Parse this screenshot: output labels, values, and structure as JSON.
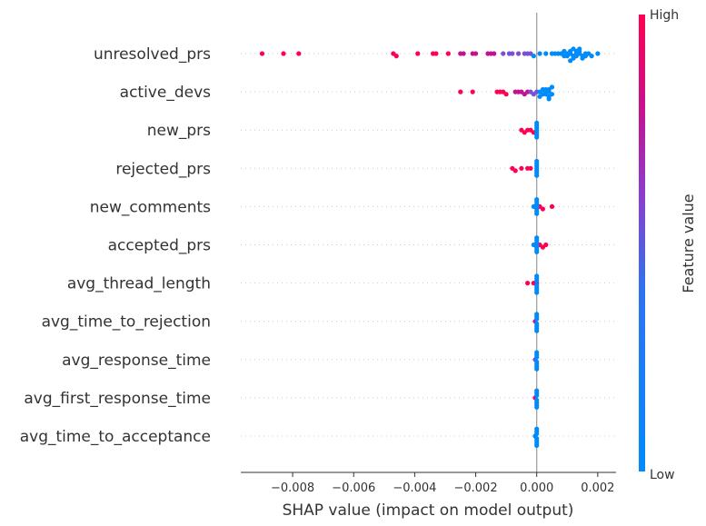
{
  "chart_data": {
    "type": "scatter",
    "subtype": "shap-beeswarm",
    "xlabel": "SHAP value (impact on model output)",
    "xlim": [
      -0.0097,
      0.0026
    ],
    "xticks": [
      -0.008,
      -0.006,
      -0.004,
      -0.002,
      0.0,
      0.002
    ],
    "xtick_labels": [
      "−0.008",
      "−0.006",
      "−0.004",
      "−0.002",
      "0.000",
      "0.002"
    ],
    "zero_line": 0.0,
    "colorbar": {
      "label": "Feature value",
      "high_label": "High",
      "low_label": "Low",
      "colors": [
        "#008bfb",
        "#7b4fd6",
        "#c2128f",
        "#ff0052"
      ]
    },
    "point_colors": {
      "low": "#008bfb",
      "purple": "#7b4fd6",
      "magenta": "#c2128f",
      "high": "#ff0052"
    },
    "features": [
      {
        "name": "unresolved_prs",
        "points": [
          {
            "x": -0.009,
            "c": "high"
          },
          {
            "x": -0.0083,
            "c": "high"
          },
          {
            "x": -0.0078,
            "c": "high"
          },
          {
            "x": -0.0047,
            "c": "high"
          },
          {
            "x": -0.0046,
            "c": "high"
          },
          {
            "x": -0.0039,
            "c": "high"
          },
          {
            "x": -0.0034,
            "c": "high"
          },
          {
            "x": -0.0033,
            "c": "high"
          },
          {
            "x": -0.0029,
            "c": "high"
          },
          {
            "x": -0.0025,
            "c": "magenta"
          },
          {
            "x": -0.0024,
            "c": "magenta"
          },
          {
            "x": -0.0021,
            "c": "magenta"
          },
          {
            "x": -0.002,
            "c": "magenta"
          },
          {
            "x": -0.0016,
            "c": "magenta"
          },
          {
            "x": -0.0015,
            "c": "magenta"
          },
          {
            "x": -0.0014,
            "c": "magenta"
          },
          {
            "x": -0.0011,
            "c": "purple"
          },
          {
            "x": -0.0009,
            "c": "purple"
          },
          {
            "x": -0.0008,
            "c": "purple"
          },
          {
            "x": -0.0006,
            "c": "purple"
          },
          {
            "x": -0.0004,
            "c": "purple"
          },
          {
            "x": -0.0003,
            "c": "purple"
          },
          {
            "x": -0.0002,
            "c": "purple"
          },
          {
            "x": -0.0001,
            "c": "low"
          },
          {
            "x": 0.0001,
            "c": "low"
          },
          {
            "x": 0.0003,
            "c": "low"
          },
          {
            "x": 0.0005,
            "c": "low"
          },
          {
            "x": 0.0006,
            "c": "low"
          },
          {
            "x": 0.0007,
            "c": "low"
          },
          {
            "x": 0.0008,
            "c": "low"
          },
          {
            "x": 0.0009,
            "c": "low"
          },
          {
            "x": 0.001,
            "c": "low"
          },
          {
            "x": 0.0011,
            "c": "low"
          },
          {
            "x": 0.0012,
            "c": "low"
          },
          {
            "x": 0.0013,
            "c": "low"
          },
          {
            "x": 0.0014,
            "c": "low"
          },
          {
            "x": 0.0015,
            "c": "low"
          },
          {
            "x": 0.0016,
            "c": "low"
          },
          {
            "x": 0.0017,
            "c": "low"
          },
          {
            "x": 0.0018,
            "c": "low"
          },
          {
            "x": 0.002,
            "c": "low"
          },
          {
            "x": 0.0009,
            "c": "low"
          },
          {
            "x": 0.0011,
            "c": "low"
          },
          {
            "x": 0.0012,
            "c": "low"
          },
          {
            "x": 0.0013,
            "c": "low"
          },
          {
            "x": 0.0014,
            "c": "low"
          },
          {
            "x": 0.0015,
            "c": "low"
          },
          {
            "x": 0.001,
            "c": "low"
          },
          {
            "x": 0.0012,
            "c": "low"
          },
          {
            "x": 0.0013,
            "c": "low"
          },
          {
            "x": 0.0014,
            "c": "low"
          },
          {
            "x": 0.0011,
            "c": "low"
          },
          {
            "x": 0.0016,
            "c": "low"
          }
        ]
      },
      {
        "name": "active_devs",
        "points": [
          {
            "x": -0.0025,
            "c": "high"
          },
          {
            "x": -0.0021,
            "c": "high"
          },
          {
            "x": -0.0013,
            "c": "high"
          },
          {
            "x": -0.0012,
            "c": "high"
          },
          {
            "x": -0.0011,
            "c": "high"
          },
          {
            "x": -0.001,
            "c": "high"
          },
          {
            "x": -0.0007,
            "c": "magenta"
          },
          {
            "x": -0.0006,
            "c": "magenta"
          },
          {
            "x": -0.0005,
            "c": "magenta"
          },
          {
            "x": -0.0004,
            "c": "magenta"
          },
          {
            "x": -0.0003,
            "c": "magenta"
          },
          {
            "x": -0.0002,
            "c": "purple"
          },
          {
            "x": -0.0001,
            "c": "purple"
          },
          {
            "x": 0.0,
            "c": "purple"
          },
          {
            "x": 0.0001,
            "c": "low"
          },
          {
            "x": 0.0002,
            "c": "low"
          },
          {
            "x": 0.0003,
            "c": "low"
          },
          {
            "x": 0.0004,
            "c": "low"
          },
          {
            "x": 0.0005,
            "c": "low"
          },
          {
            "x": 0.0003,
            "c": "low"
          },
          {
            "x": 0.0004,
            "c": "low"
          },
          {
            "x": 0.0002,
            "c": "low"
          },
          {
            "x": 0.0004,
            "c": "low"
          },
          {
            "x": 0.0005,
            "c": "low"
          },
          {
            "x": 0.0003,
            "c": "low"
          },
          {
            "x": 0.0004,
            "c": "low"
          },
          {
            "x": 0.0001,
            "c": "low"
          }
        ]
      },
      {
        "name": "new_prs",
        "points": [
          {
            "x": -0.0005,
            "c": "high"
          },
          {
            "x": -0.0004,
            "c": "high"
          },
          {
            "x": -0.0003,
            "c": "high"
          },
          {
            "x": -0.0002,
            "c": "high"
          },
          {
            "x": -0.0001,
            "c": "high"
          },
          {
            "x": 0.0,
            "c": "low"
          },
          {
            "x": 0.0,
            "c": "low"
          },
          {
            "x": 0.0,
            "c": "low"
          },
          {
            "x": 0.0,
            "c": "low"
          },
          {
            "x": 0.0,
            "c": "low"
          },
          {
            "x": 0.0,
            "c": "low"
          },
          {
            "x": 0.0,
            "c": "low"
          }
        ]
      },
      {
        "name": "rejected_prs",
        "points": [
          {
            "x": -0.0008,
            "c": "high"
          },
          {
            "x": -0.0007,
            "c": "high"
          },
          {
            "x": -0.0005,
            "c": "high"
          },
          {
            "x": -0.0003,
            "c": "high"
          },
          {
            "x": -0.0002,
            "c": "high"
          },
          {
            "x": 0.0,
            "c": "low"
          },
          {
            "x": 0.0,
            "c": "low"
          },
          {
            "x": 0.0,
            "c": "low"
          },
          {
            "x": 0.0,
            "c": "low"
          },
          {
            "x": 0.0,
            "c": "low"
          },
          {
            "x": 0.0,
            "c": "low"
          },
          {
            "x": 0.0,
            "c": "low"
          }
        ]
      },
      {
        "name": "new_comments",
        "points": [
          {
            "x": 0.0001,
            "c": "high"
          },
          {
            "x": 0.0002,
            "c": "high"
          },
          {
            "x": 0.0005,
            "c": "high"
          },
          {
            "x": 0.0,
            "c": "low"
          },
          {
            "x": 0.0,
            "c": "low"
          },
          {
            "x": 0.0,
            "c": "low"
          },
          {
            "x": 0.0,
            "c": "low"
          },
          {
            "x": 0.0,
            "c": "low"
          },
          {
            "x": 0.0,
            "c": "low"
          },
          {
            "x": 0.0,
            "c": "low"
          },
          {
            "x": -0.0001,
            "c": "low"
          }
        ]
      },
      {
        "name": "accepted_prs",
        "points": [
          {
            "x": 0.0001,
            "c": "high"
          },
          {
            "x": 0.0002,
            "c": "high"
          },
          {
            "x": 0.0003,
            "c": "high"
          },
          {
            "x": 0.0,
            "c": "low"
          },
          {
            "x": 0.0,
            "c": "low"
          },
          {
            "x": 0.0,
            "c": "low"
          },
          {
            "x": 0.0,
            "c": "low"
          },
          {
            "x": 0.0,
            "c": "low"
          },
          {
            "x": 0.0,
            "c": "low"
          },
          {
            "x": -0.0001,
            "c": "low"
          },
          {
            "x": 0.0,
            "c": "low"
          }
        ]
      },
      {
        "name": "avg_thread_length",
        "points": [
          {
            "x": -0.0003,
            "c": "high"
          },
          {
            "x": -0.0001,
            "c": "high"
          },
          {
            "x": 0.0,
            "c": "magenta"
          },
          {
            "x": 0.0,
            "c": "low"
          },
          {
            "x": 0.0,
            "c": "low"
          },
          {
            "x": 0.0,
            "c": "low"
          },
          {
            "x": 0.0,
            "c": "low"
          },
          {
            "x": 0.0,
            "c": "low"
          },
          {
            "x": 0.0,
            "c": "low"
          },
          {
            "x": 0.0,
            "c": "low"
          }
        ]
      },
      {
        "name": "avg_time_to_rejection",
        "points": [
          {
            "x": -5e-05,
            "c": "magenta"
          },
          {
            "x": 0.0,
            "c": "low"
          },
          {
            "x": 0.0,
            "c": "low"
          },
          {
            "x": 0.0,
            "c": "low"
          },
          {
            "x": 0.0,
            "c": "low"
          },
          {
            "x": 0.0,
            "c": "low"
          },
          {
            "x": 0.0,
            "c": "low"
          },
          {
            "x": 0.0,
            "c": "low"
          }
        ]
      },
      {
        "name": "avg_response_time",
        "points": [
          {
            "x": -5e-05,
            "c": "purple"
          },
          {
            "x": 0.0,
            "c": "low"
          },
          {
            "x": 0.0,
            "c": "low"
          },
          {
            "x": 0.0,
            "c": "low"
          },
          {
            "x": 0.0,
            "c": "low"
          },
          {
            "x": 0.0,
            "c": "low"
          },
          {
            "x": 0.0,
            "c": "low"
          },
          {
            "x": 0.0,
            "c": "low"
          }
        ]
      },
      {
        "name": "avg_first_response_time",
        "points": [
          {
            "x": -5e-05,
            "c": "high"
          },
          {
            "x": 0.0,
            "c": "low"
          },
          {
            "x": 0.0,
            "c": "low"
          },
          {
            "x": 0.0,
            "c": "low"
          },
          {
            "x": 0.0,
            "c": "low"
          },
          {
            "x": 0.0,
            "c": "low"
          },
          {
            "x": 0.0,
            "c": "low"
          },
          {
            "x": 0.0,
            "c": "low"
          }
        ]
      },
      {
        "name": "avg_time_to_acceptance",
        "points": [
          {
            "x": -5e-05,
            "c": "low"
          },
          {
            "x": 0.0,
            "c": "low"
          },
          {
            "x": 0.0,
            "c": "low"
          },
          {
            "x": 0.0,
            "c": "low"
          },
          {
            "x": 0.0,
            "c": "low"
          },
          {
            "x": 0.0,
            "c": "low"
          },
          {
            "x": 0.0,
            "c": "low"
          },
          {
            "x": 0.0,
            "c": "low"
          }
        ]
      }
    ]
  }
}
